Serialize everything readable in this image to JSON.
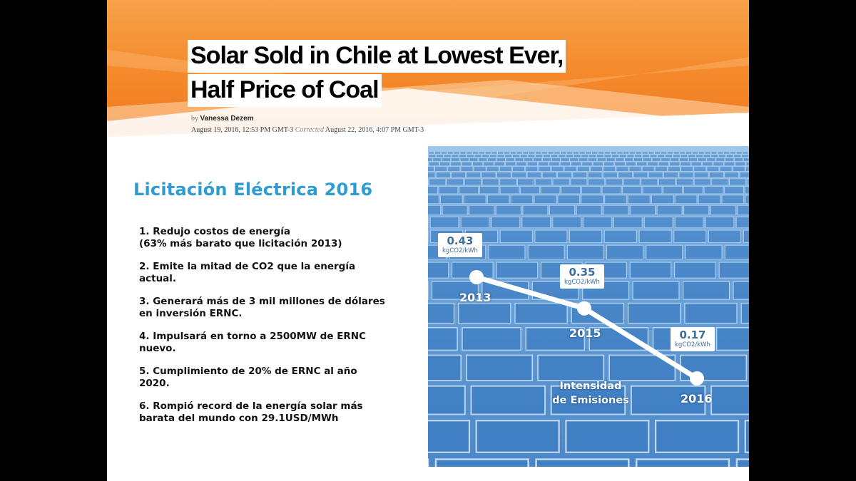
{
  "article": {
    "headline_line1": "Solar Sold in Chile at Lowest Ever,",
    "headline_line2": "Half Price of Coal",
    "byline_by": "by",
    "author": "Vanessa Dezem",
    "published": "August 19, 2016, 12:53 PM GMT-3",
    "corrected_label": "Corrected",
    "corrected_date": "August 22, 2016, 4:07 PM GMT-3"
  },
  "infographic": {
    "title": "Licitación Eléctrica 2016",
    "points": [
      {
        "line1": "1. Redujo costos de energía",
        "line2": "(63% más barato que licitación 2013)"
      },
      {
        "line1": "2. Emite la mitad de CO2 que la energía",
        "line2": "actual."
      },
      {
        "line1": "3. Generará más de 3 mil millones de dólares",
        "line2": "en inversión ERNC."
      },
      {
        "line1": "4. Impulsará en torno a 2500MW de ERNC",
        "line2": "nuevo."
      },
      {
        "line1": "5. Cumplimiento de 20% de ERNC al año",
        "line2": "2020."
      },
      {
        "line1": "6. Rompió record de la energía solar más",
        "line2": "barata del mundo con 29.1USD/MWh"
      }
    ]
  },
  "chart_data": {
    "type": "line",
    "title": "",
    "label_line1": "Intensidad",
    "label_line2": "de Emisiones",
    "unit": "kgCO2/kWh",
    "categories": [
      "2013",
      "2015",
      "2016"
    ],
    "values": [
      "0.43",
      "0.35",
      "0.17"
    ],
    "ylim": [
      0,
      0.5
    ]
  },
  "colors": {
    "banner_orange": "#f5892f",
    "title_blue": "#2f9bd3",
    "panel_blue": "#4a90d2",
    "value_text": "#3c6f9c"
  }
}
